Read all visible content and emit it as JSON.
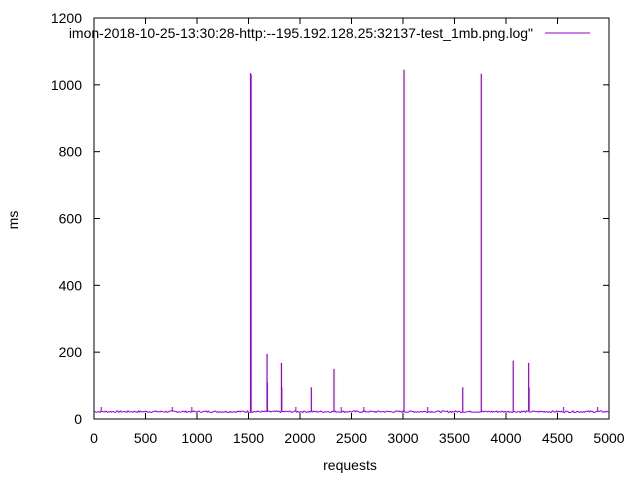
{
  "chart_data": {
    "type": "line",
    "xlabel": "requests",
    "ylabel": "ms",
    "xlim": [
      0,
      5000
    ],
    "ylim": [
      0,
      1200
    ],
    "x_ticks": [
      "0",
      "500",
      "1000",
      "1500",
      "2000",
      "2500",
      "3000",
      "3500",
      "4000",
      "4500",
      "5000"
    ],
    "y_ticks": [
      "0",
      "200",
      "400",
      "600",
      "800",
      "1000",
      "1200"
    ],
    "grid": false,
    "legend_position": "top-right",
    "baseline_ms": 22,
    "series": [
      {
        "name": "imon-2018-10-25-13:30:28-http:--195.192.128.25:32137-test_1mb.png.log\"",
        "color": "#9400d3",
        "spikes": [
          {
            "x": 1520,
            "y": 1035
          },
          {
            "x": 1525,
            "y": 1030
          },
          {
            "x": 1680,
            "y": 195
          },
          {
            "x": 1683,
            "y": 110
          },
          {
            "x": 1820,
            "y": 168
          },
          {
            "x": 1823,
            "y": 95
          },
          {
            "x": 2110,
            "y": 95
          },
          {
            "x": 2330,
            "y": 150
          },
          {
            "x": 3010,
            "y": 1045
          },
          {
            "x": 3580,
            "y": 95
          },
          {
            "x": 3760,
            "y": 1033
          },
          {
            "x": 4070,
            "y": 175
          },
          {
            "x": 4220,
            "y": 168
          },
          {
            "x": 4224,
            "y": 95
          }
        ]
      }
    ]
  }
}
